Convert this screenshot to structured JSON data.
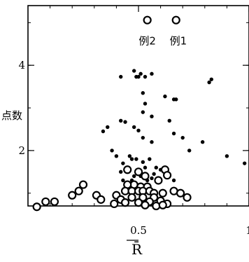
{
  "chart_data": {
    "type": "scatter",
    "title": "",
    "xlabel": "R̄",
    "ylabel": "点数",
    "xlim": [
      0.0,
      1.0
    ],
    "ylim": [
      0.7,
      5.4
    ],
    "x_ticks": [
      0.5,
      1.0
    ],
    "x_tick_labels": [
      "0.5",
      "1"
    ],
    "y_ticks": [
      2,
      4
    ],
    "y_tick_labels": [
      "2",
      "4"
    ],
    "grid": false,
    "legend": "none",
    "annotations": [
      {
        "text": "例2",
        "x": 0.54,
        "y": 4.85
      },
      {
        "text": "例1",
        "x": 0.68,
        "y": 4.85
      }
    ],
    "series": [
      {
        "marker": "filled-dot",
        "color": "#000000",
        "points": [
          [
            0.42,
            3.73
          ],
          [
            0.48,
            3.87
          ],
          [
            0.49,
            3.73
          ],
          [
            0.5,
            3.73
          ],
          [
            0.51,
            3.8
          ],
          [
            0.53,
            3.73
          ],
          [
            0.56,
            3.8
          ],
          [
            0.62,
            3.27
          ],
          [
            0.66,
            3.2
          ],
          [
            0.67,
            3.2
          ],
          [
            0.83,
            3.67
          ],
          [
            0.82,
            3.6
          ],
          [
            0.52,
            3.35
          ],
          [
            0.53,
            3.1
          ],
          [
            0.36,
            2.55
          ],
          [
            0.34,
            2.45
          ],
          [
            0.42,
            2.7
          ],
          [
            0.44,
            2.67
          ],
          [
            0.52,
            2.9
          ],
          [
            0.56,
            2.8
          ],
          [
            0.48,
            2.55
          ],
          [
            0.5,
            2.47
          ],
          [
            0.52,
            2.3
          ],
          [
            0.56,
            2.2
          ],
          [
            0.64,
            2.7
          ],
          [
            0.66,
            2.4
          ],
          [
            0.7,
            2.3
          ],
          [
            0.79,
            2.2
          ],
          [
            0.73,
            2.0
          ],
          [
            0.38,
            2.0
          ],
          [
            0.4,
            1.87
          ],
          [
            0.43,
            1.7
          ],
          [
            0.46,
            1.87
          ],
          [
            0.47,
            1.8
          ],
          [
            0.49,
            1.8
          ],
          [
            0.52,
            1.73
          ],
          [
            0.55,
            1.8
          ],
          [
            0.58,
            1.6
          ],
          [
            0.5,
            1.55
          ],
          [
            0.46,
            1.55
          ],
          [
            0.53,
            1.6
          ],
          [
            0.42,
            1.5
          ],
          [
            0.6,
            1.55
          ],
          [
            0.48,
            1.4
          ],
          [
            0.51,
            1.4
          ],
          [
            0.43,
            1.3
          ],
          [
            0.54,
            1.3
          ],
          [
            0.47,
            1.3
          ],
          [
            0.56,
            1.35
          ],
          [
            0.45,
            1.2
          ],
          [
            0.66,
            1.3
          ],
          [
            0.9,
            1.87
          ],
          [
            0.98,
            1.7
          ],
          [
            0.57,
            1.45
          ]
        ]
      },
      {
        "marker": "open-circle",
        "color": "#000000",
        "points": [
          [
            0.54,
            5.06
          ],
          [
            0.67,
            5.06
          ],
          [
            0.45,
            1.55
          ],
          [
            0.5,
            1.5
          ],
          [
            0.53,
            1.4
          ],
          [
            0.62,
            1.55
          ],
          [
            0.63,
            1.42
          ],
          [
            0.59,
            1.3
          ],
          [
            0.48,
            1.2
          ],
          [
            0.45,
            1.2
          ],
          [
            0.51,
            1.15
          ],
          [
            0.54,
            1.15
          ],
          [
            0.44,
            1.05
          ],
          [
            0.47,
            1.05
          ],
          [
            0.5,
            1.05
          ],
          [
            0.52,
            1.05
          ],
          [
            0.55,
            1.05
          ],
          [
            0.57,
            1.0
          ],
          [
            0.61,
            1.0
          ],
          [
            0.66,
            1.05
          ],
          [
            0.25,
            1.2
          ],
          [
            0.2,
            0.95
          ],
          [
            0.23,
            1.05
          ],
          [
            0.31,
            0.95
          ],
          [
            0.33,
            0.85
          ],
          [
            0.4,
            0.95
          ],
          [
            0.42,
            0.85
          ],
          [
            0.47,
            0.9
          ],
          [
            0.52,
            0.9
          ],
          [
            0.57,
            0.9
          ],
          [
            0.6,
            0.82
          ],
          [
            0.63,
            0.75
          ],
          [
            0.55,
            0.8
          ],
          [
            0.5,
            0.78
          ],
          [
            0.44,
            0.78
          ],
          [
            0.39,
            0.75
          ],
          [
            0.53,
            0.72
          ],
          [
            0.58,
            0.7
          ],
          [
            0.61,
            0.72
          ],
          [
            0.69,
            1.0
          ],
          [
            0.72,
            0.9
          ],
          [
            0.12,
            0.8
          ],
          [
            0.08,
            0.8
          ],
          [
            0.04,
            0.68
          ]
        ]
      }
    ]
  }
}
